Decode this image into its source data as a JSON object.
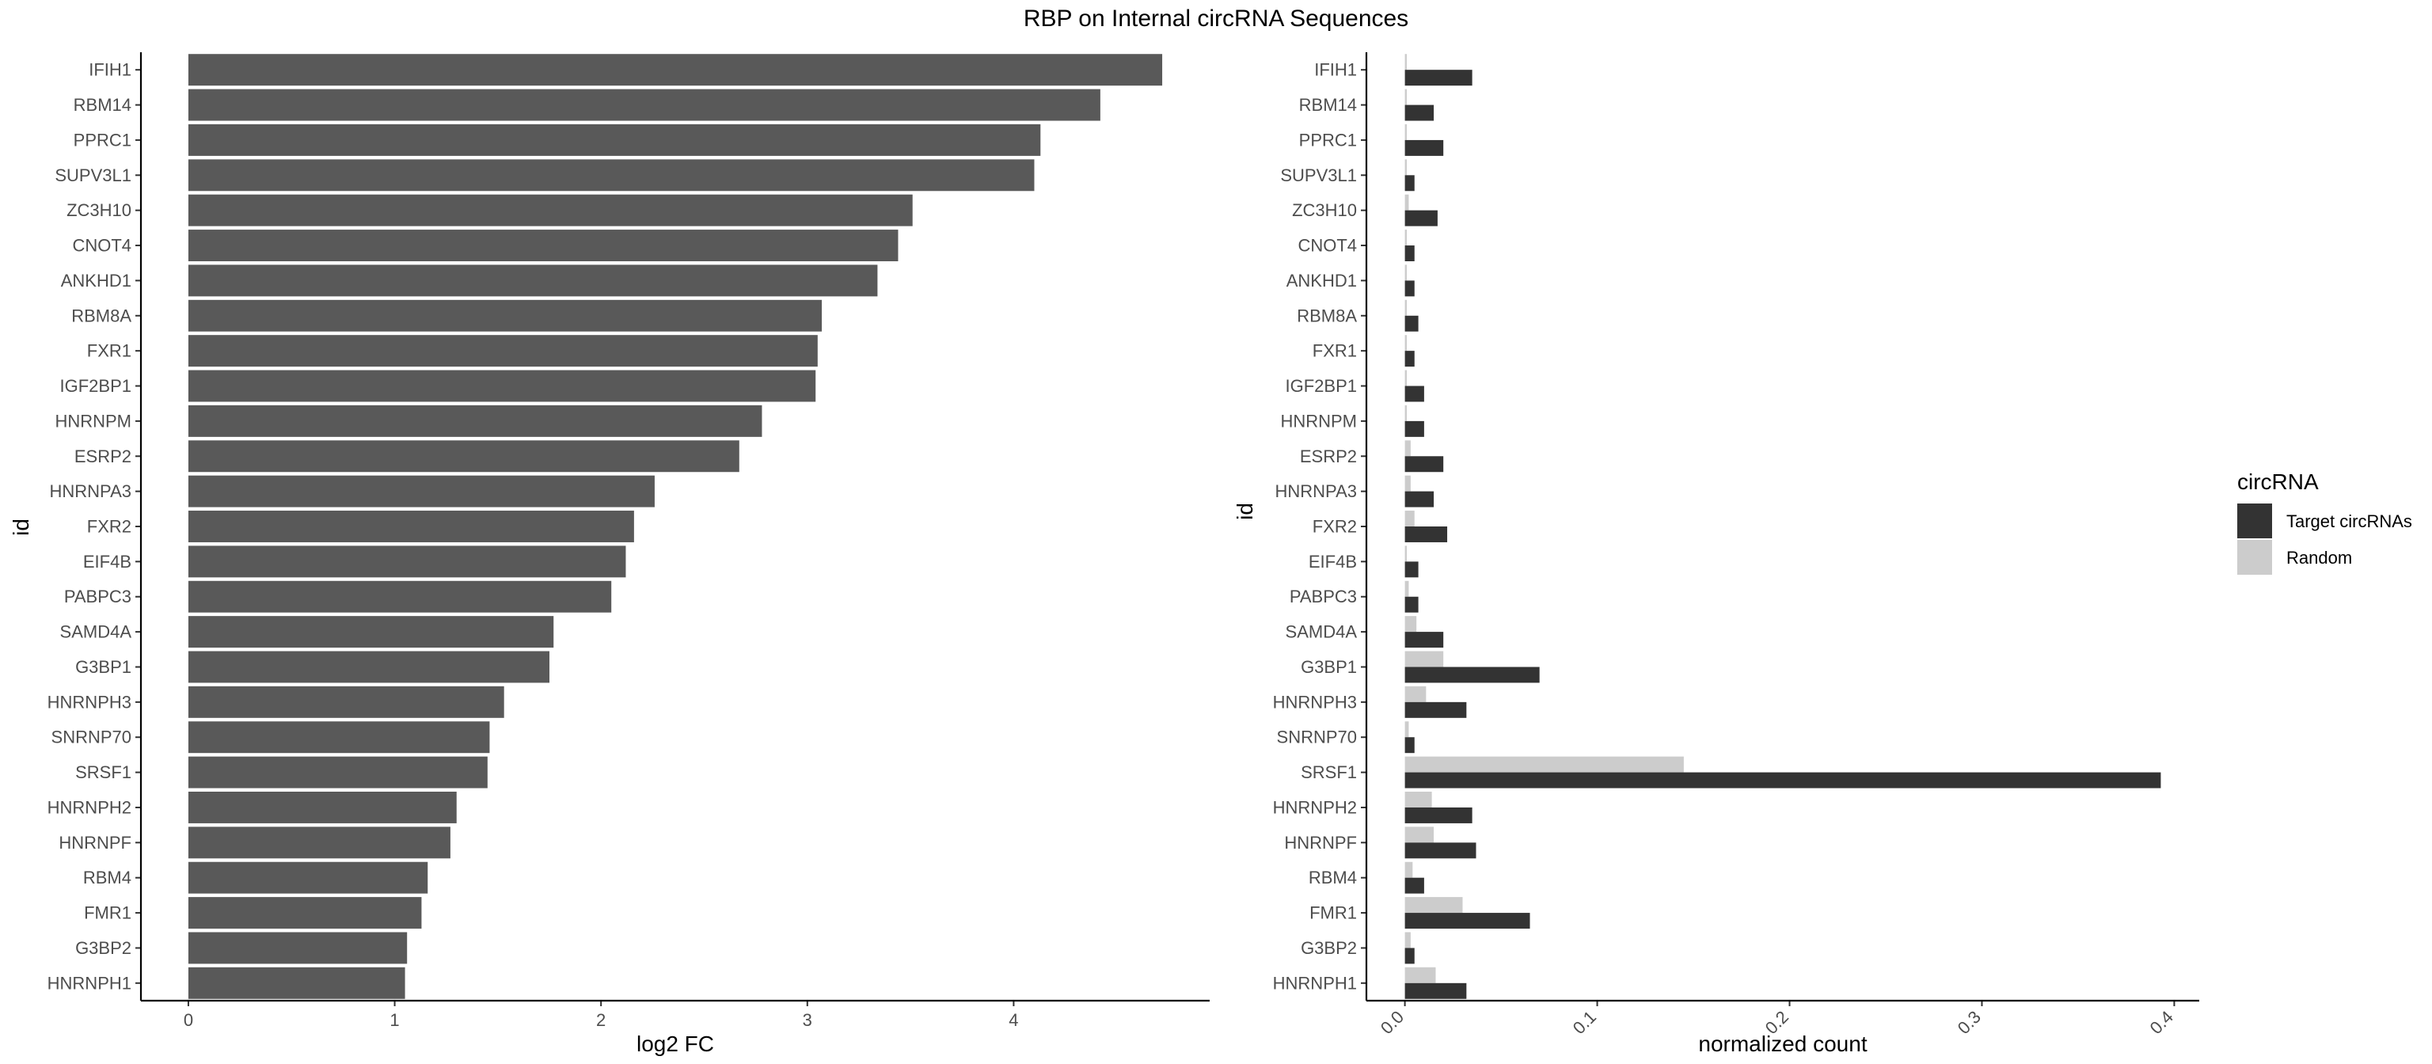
{
  "title": "RBP on Internal circRNA Sequences",
  "chart_data": [
    {
      "type": "bar",
      "orientation": "horizontal",
      "categories": [
        "IFIH1",
        "RBM14",
        "PPRC1",
        "SUPV3L1",
        "ZC3H10",
        "CNOT4",
        "ANKHD1",
        "RBM8A",
        "FXR1",
        "IGF2BP1",
        "HNRNPM",
        "ESRP2",
        "HNRNPA3",
        "FXR2",
        "EIF4B",
        "PABPC3",
        "SAMD4A",
        "G3BP1",
        "HNRNPH3",
        "SNRNP70",
        "SRSF1",
        "HNRNPH2",
        "HNRNPF",
        "RBM4",
        "FMR1",
        "G3BP2",
        "HNRNPH1"
      ],
      "values": [
        4.72,
        4.42,
        4.13,
        4.1,
        3.51,
        3.44,
        3.34,
        3.07,
        3.05,
        3.04,
        2.78,
        2.67,
        2.26,
        2.16,
        2.12,
        2.05,
        1.77,
        1.75,
        1.53,
        1.46,
        1.45,
        1.3,
        1.27,
        1.16,
        1.13,
        1.06,
        1.05
      ],
      "xlabel": "log2 FC",
      "ylabel": "id",
      "xlim": [
        -0.23,
        4.95
      ],
      "xticks": [
        "0",
        "1",
        "2",
        "3",
        "4"
      ],
      "bar_color": "#595959",
      "grid": false
    },
    {
      "type": "bar",
      "orientation": "horizontal",
      "categories": [
        "IFIH1",
        "RBM14",
        "PPRC1",
        "SUPV3L1",
        "ZC3H10",
        "CNOT4",
        "ANKHD1",
        "RBM8A",
        "FXR1",
        "IGF2BP1",
        "HNRNPM",
        "ESRP2",
        "HNRNPA3",
        "FXR2",
        "EIF4B",
        "PABPC3",
        "SAMD4A",
        "G3BP1",
        "HNRNPH3",
        "SNRNP70",
        "SRSF1",
        "HNRNPH2",
        "HNRNPF",
        "RBM4",
        "FMR1",
        "G3BP2",
        "HNRNPH1"
      ],
      "series": [
        {
          "name": "Target circRNAs",
          "color": "#333333",
          "values": [
            0.035,
            0.015,
            0.02,
            0.005,
            0.017,
            0.005,
            0.005,
            0.007,
            0.005,
            0.01,
            0.01,
            0.02,
            0.015,
            0.022,
            0.007,
            0.007,
            0.02,
            0.07,
            0.032,
            0.005,
            0.393,
            0.035,
            0.037,
            0.01,
            0.065,
            0.005,
            0.032
          ]
        },
        {
          "name": "Random",
          "color": "#cccccc",
          "values": [
            0.001,
            0.001,
            0.001,
            0.001,
            0.002,
            0.001,
            0.001,
            0.001,
            0.001,
            0.001,
            0.001,
            0.003,
            0.003,
            0.005,
            0.001,
            0.002,
            0.006,
            0.02,
            0.011,
            0.002,
            0.145,
            0.014,
            0.015,
            0.004,
            0.03,
            0.003,
            0.016
          ]
        }
      ],
      "xlabel": "normalized count",
      "ylabel": "id",
      "xlim": [
        -0.02,
        0.413
      ],
      "xticks": [
        "0.0",
        "0.1",
        "0.2",
        "0.3",
        "0.4"
      ],
      "grid": false,
      "legend": {
        "title": "circRNA",
        "position": "right"
      }
    }
  ]
}
